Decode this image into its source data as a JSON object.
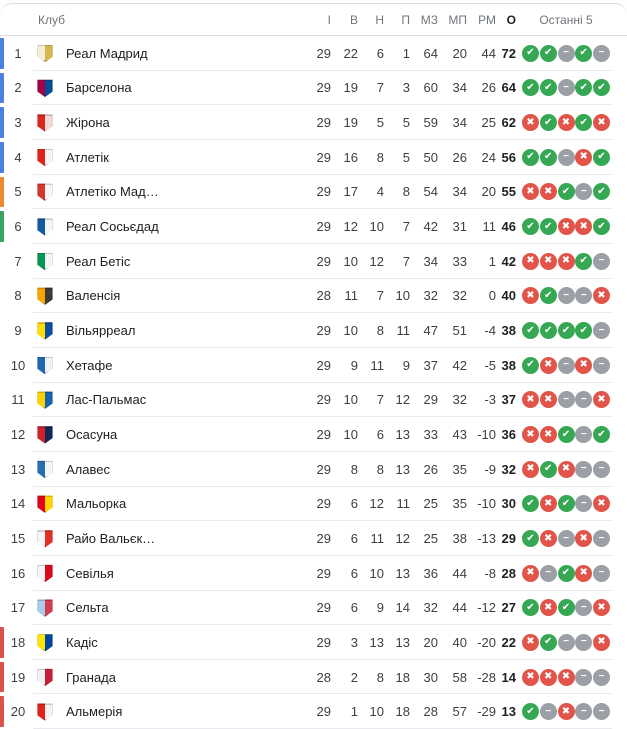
{
  "header": {
    "club": "Клуб",
    "cols": [
      "І",
      "В",
      "Н",
      "П",
      "МЗ",
      "МП",
      "РМ",
      "О"
    ],
    "form": "Останні 5"
  },
  "zone_colors": {
    "ucl": "#4d7fe0",
    "uel": "#ee8a2e",
    "conf": "#3aa45f",
    "rel": "#d9534a"
  },
  "form_style": {
    "colors": {
      "w": "#36a854",
      "d": "#9aa0a6",
      "l": "#e2544a"
    },
    "glyphs": {
      "w": "✔",
      "d": "−",
      "l": "✖"
    }
  },
  "rows": [
    {
      "pos": "1",
      "name": "Реал Мадрид",
      "badge": [
        "#f3eeda",
        "#d9b64b"
      ],
      "zone": "ucl",
      "played": "29",
      "w": "22",
      "d": "6",
      "l": "1",
      "gf": "64",
      "ga": "20",
      "gd": "44",
      "pts": "72",
      "form": [
        "w",
        "w",
        "d",
        "w",
        "d"
      ]
    },
    {
      "pos": "2",
      "name": "Барселона",
      "badge": [
        "#a50044",
        "#004d98"
      ],
      "zone": "ucl",
      "played": "29",
      "w": "19",
      "d": "7",
      "l": "3",
      "gf": "60",
      "ga": "34",
      "gd": "26",
      "pts": "64",
      "form": [
        "w",
        "w",
        "d",
        "w",
        "w"
      ]
    },
    {
      "pos": "3",
      "name": "Жірона",
      "badge": [
        "#d7281d",
        "#f0d9d7"
      ],
      "zone": "ucl",
      "played": "29",
      "w": "19",
      "d": "5",
      "l": "5",
      "gf": "59",
      "ga": "34",
      "gd": "25",
      "pts": "62",
      "form": [
        "l",
        "w",
        "l",
        "w",
        "l"
      ]
    },
    {
      "pos": "4",
      "name": "Атлетік",
      "badge": [
        "#e0231c",
        "#f5f5f5"
      ],
      "zone": "ucl",
      "played": "29",
      "w": "16",
      "d": "8",
      "l": "5",
      "gf": "50",
      "ga": "26",
      "gd": "24",
      "pts": "56",
      "form": [
        "w",
        "w",
        "d",
        "l",
        "w"
      ]
    },
    {
      "pos": "5",
      "name": "Атлетіко Мад…",
      "badge": [
        "#d4372c",
        "#f5f5f5"
      ],
      "zone": "uel",
      "played": "29",
      "w": "17",
      "d": "4",
      "l": "8",
      "gf": "54",
      "ga": "34",
      "gd": "20",
      "pts": "55",
      "form": [
        "l",
        "l",
        "w",
        "d",
        "w"
      ]
    },
    {
      "pos": "6",
      "name": "Реал Сосьєдад",
      "badge": [
        "#1459a4",
        "#f5f5f5"
      ],
      "zone": "conf",
      "played": "29",
      "w": "12",
      "d": "10",
      "l": "7",
      "gf": "42",
      "ga": "31",
      "gd": "11",
      "pts": "46",
      "form": [
        "w",
        "w",
        "l",
        "l",
        "w"
      ]
    },
    {
      "pos": "7",
      "name": "Реал Бетіс",
      "badge": [
        "#009655",
        "#f5f5f5"
      ],
      "zone": null,
      "played": "29",
      "w": "10",
      "d": "12",
      "l": "7",
      "gf": "34",
      "ga": "33",
      "gd": "1",
      "pts": "42",
      "form": [
        "l",
        "l",
        "l",
        "w",
        "d"
      ]
    },
    {
      "pos": "8",
      "name": "Валенсія",
      "badge": [
        "#f7a600",
        "#3a3a3a"
      ],
      "zone": null,
      "played": "28",
      "w": "11",
      "d": "7",
      "l": "10",
      "gf": "32",
      "ga": "32",
      "gd": "0",
      "pts": "40",
      "form": [
        "l",
        "w",
        "d",
        "d",
        "l"
      ]
    },
    {
      "pos": "9",
      "name": "Вільярреал",
      "badge": [
        "#ffdd00",
        "#0a4ea2"
      ],
      "zone": null,
      "played": "29",
      "w": "10",
      "d": "8",
      "l": "11",
      "gf": "47",
      "ga": "51",
      "gd": "-4",
      "pts": "38",
      "form": [
        "w",
        "w",
        "w",
        "w",
        "d"
      ]
    },
    {
      "pos": "10",
      "name": "Хетафе",
      "badge": [
        "#1f67b2",
        "#eef2f7"
      ],
      "zone": null,
      "played": "29",
      "w": "9",
      "d": "11",
      "l": "9",
      "gf": "37",
      "ga": "42",
      "gd": "-5",
      "pts": "38",
      "form": [
        "w",
        "l",
        "d",
        "l",
        "d"
      ]
    },
    {
      "pos": "11",
      "name": "Лас-Пальмас",
      "badge": [
        "#ffd200",
        "#1263b2"
      ],
      "zone": null,
      "played": "29",
      "w": "10",
      "d": "7",
      "l": "12",
      "gf": "29",
      "ga": "32",
      "gd": "-3",
      "pts": "37",
      "form": [
        "l",
        "l",
        "d",
        "d",
        "l"
      ]
    },
    {
      "pos": "12",
      "name": "Осасуна",
      "badge": [
        "#d02029",
        "#10275a"
      ],
      "zone": null,
      "played": "29",
      "w": "10",
      "d": "6",
      "l": "13",
      "gf": "33",
      "ga": "43",
      "gd": "-10",
      "pts": "36",
      "form": [
        "l",
        "l",
        "w",
        "d",
        "w"
      ]
    },
    {
      "pos": "13",
      "name": "Алавес",
      "badge": [
        "#2a6db5",
        "#f5f5f5"
      ],
      "zone": null,
      "played": "29",
      "w": "8",
      "d": "8",
      "l": "13",
      "gf": "26",
      "ga": "35",
      "gd": "-9",
      "pts": "32",
      "form": [
        "l",
        "w",
        "l",
        "d",
        "d"
      ]
    },
    {
      "pos": "14",
      "name": "Мальорка",
      "badge": [
        "#e3001b",
        "#ffd500"
      ],
      "zone": null,
      "played": "29",
      "w": "6",
      "d": "12",
      "l": "11",
      "gf": "25",
      "ga": "35",
      "gd": "-10",
      "pts": "30",
      "form": [
        "w",
        "l",
        "w",
        "d",
        "l"
      ]
    },
    {
      "pos": "15",
      "name": "Райо Вальєк…",
      "badge": [
        "#f5f5f5",
        "#e53027"
      ],
      "zone": null,
      "played": "29",
      "w": "6",
      "d": "11",
      "l": "12",
      "gf": "25",
      "ga": "38",
      "gd": "-13",
      "pts": "29",
      "form": [
        "w",
        "l",
        "d",
        "l",
        "d"
      ]
    },
    {
      "pos": "16",
      "name": "Севілья",
      "badge": [
        "#f5f5f5",
        "#d8091f"
      ],
      "zone": null,
      "played": "29",
      "w": "6",
      "d": "10",
      "l": "13",
      "gf": "36",
      "ga": "44",
      "gd": "-8",
      "pts": "28",
      "form": [
        "l",
        "d",
        "w",
        "l",
        "d"
      ]
    },
    {
      "pos": "17",
      "name": "Сельта",
      "badge": [
        "#a7cdec",
        "#d23b50"
      ],
      "zone": null,
      "played": "29",
      "w": "6",
      "d": "9",
      "l": "14",
      "gf": "32",
      "ga": "44",
      "gd": "-12",
      "pts": "27",
      "form": [
        "w",
        "l",
        "w",
        "d",
        "l"
      ]
    },
    {
      "pos": "18",
      "name": "Кадіс",
      "badge": [
        "#ffe500",
        "#0045a2"
      ],
      "zone": "rel",
      "played": "29",
      "w": "3",
      "d": "13",
      "l": "13",
      "gf": "20",
      "ga": "40",
      "gd": "-20",
      "pts": "22",
      "form": [
        "l",
        "w",
        "d",
        "d",
        "l"
      ]
    },
    {
      "pos": "19",
      "name": "Гранада",
      "badge": [
        "#f2f2f2",
        "#c81e3c"
      ],
      "zone": "rel",
      "played": "28",
      "w": "2",
      "d": "8",
      "l": "18",
      "gf": "30",
      "ga": "58",
      "gd": "-28",
      "pts": "14",
      "form": [
        "l",
        "l",
        "l",
        "d",
        "d"
      ]
    },
    {
      "pos": "20",
      "name": "Альмерія",
      "badge": [
        "#e0231c",
        "#f2f2f2"
      ],
      "zone": "rel",
      "played": "29",
      "w": "1",
      "d": "10",
      "l": "18",
      "gf": "28",
      "ga": "57",
      "gd": "-29",
      "pts": "13",
      "form": [
        "w",
        "d",
        "l",
        "d",
        "d"
      ]
    }
  ]
}
